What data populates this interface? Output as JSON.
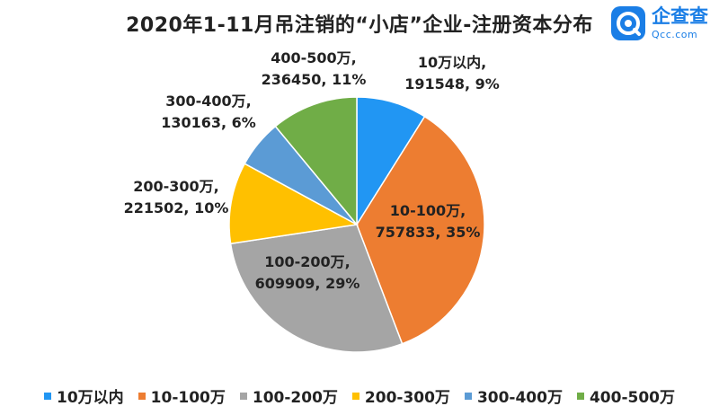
{
  "chart_data": {
    "type": "pie",
    "title": "2020年1-11月吊注销的“小店”企业-注册资本分布",
    "slices": [
      {
        "name": "10万以内",
        "value": 191548,
        "percent": "9%",
        "color": "#2196F3"
      },
      {
        "name": "10-100万",
        "value": 757833,
        "percent": "35%",
        "color": "#ED7D31"
      },
      {
        "name": "100-200万",
        "value": 609909,
        "percent": "29%",
        "color": "#A5A5A5"
      },
      {
        "name": "200-300万",
        "value": 221502,
        "percent": "10%",
        "color": "#FFC000"
      },
      {
        "name": "300-400万",
        "value": 130163,
        "percent": "6%",
        "color": "#5B9BD5"
      },
      {
        "name": "400-500万",
        "value": 236450,
        "percent": "11%",
        "color": "#70AD47"
      }
    ],
    "legend_position": "bottom"
  },
  "logo": {
    "text": "企查查",
    "subtext": "Qcc.com",
    "color": "#1a7ee6"
  }
}
